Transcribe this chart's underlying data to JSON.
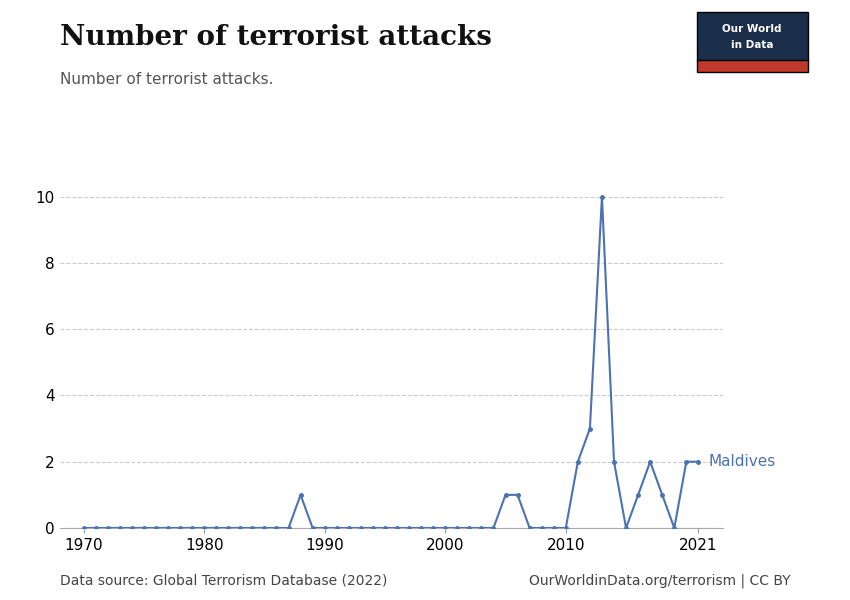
{
  "title": "Number of terrorist attacks",
  "subtitle": "Number of terrorist attacks.",
  "xlabel": "",
  "ylabel": "",
  "datasource": "Data source: Global Terrorism Database (2022)",
  "url": "OurWorldinData.org/terrorism | CC BY",
  "line_color": "#4C72B0",
  "background_color": "#ffffff",
  "label": "Maldives",
  "years": [
    1970,
    1971,
    1972,
    1973,
    1974,
    1975,
    1976,
    1977,
    1978,
    1979,
    1980,
    1981,
    1982,
    1983,
    1984,
    1985,
    1986,
    1987,
    1988,
    1989,
    1990,
    1991,
    1992,
    1993,
    1994,
    1995,
    1996,
    1997,
    1998,
    1999,
    2000,
    2001,
    2002,
    2003,
    2004,
    2005,
    2006,
    2007,
    2008,
    2009,
    2010,
    2011,
    2012,
    2013,
    2014,
    2015,
    2016,
    2017,
    2018,
    2019,
    2020,
    2021
  ],
  "values": [
    0,
    0,
    0,
    0,
    0,
    0,
    0,
    0,
    0,
    0,
    0,
    0,
    0,
    0,
    0,
    0,
    0,
    0,
    1,
    0,
    0,
    0,
    0,
    0,
    0,
    0,
    0,
    0,
    0,
    0,
    0,
    0,
    0,
    0,
    0,
    1,
    1,
    0,
    0,
    0,
    0,
    2,
    3,
    10,
    2,
    0,
    1,
    2,
    1,
    0,
    2,
    2
  ],
  "ylim": [
    0,
    10.5
  ],
  "yticks": [
    0,
    2,
    4,
    6,
    8,
    10
  ],
  "xlim": [
    1968,
    2023
  ],
  "xticks": [
    1970,
    1980,
    1990,
    2000,
    2010,
    2021
  ],
  "grid_color": "#cccccc",
  "owid_box_color": "#1a2e4a",
  "owid_red": "#c0392b",
  "title_fontsize": 20,
  "subtitle_fontsize": 11,
  "tick_fontsize": 11,
  "label_fontsize": 11,
  "footer_fontsize": 10
}
